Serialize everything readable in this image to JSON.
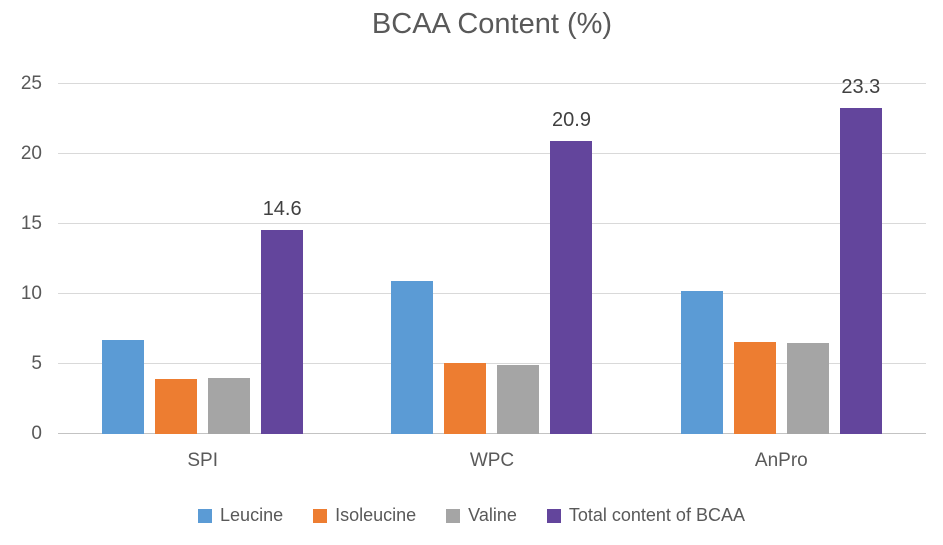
{
  "chart_data": {
    "type": "bar",
    "title": "BCAA Content (%)",
    "categories": [
      "SPI",
      "WPC",
      "AnPro"
    ],
    "series": [
      {
        "name": "Leucine",
        "color": "#5B9BD5",
        "values": [
          6.7,
          10.9,
          10.2
        ]
      },
      {
        "name": "Isoleucine",
        "color": "#ED7D31",
        "values": [
          3.9,
          5.1,
          6.6
        ]
      },
      {
        "name": "Valine",
        "color": "#A5A5A5",
        "values": [
          4.0,
          4.9,
          6.5
        ]
      },
      {
        "name": "Total content of BCAA",
        "color": "#63459C",
        "values": [
          14.6,
          20.9,
          23.3
        ],
        "data_labels": [
          "14.6",
          "20.9",
          "23.3"
        ]
      }
    ],
    "ylim": [
      0,
      25
    ],
    "yticks": [
      "0",
      "5",
      "10",
      "15",
      "20",
      "25"
    ],
    "grid": true,
    "legend_position": "bottom",
    "axis_text_color": "#595959",
    "data_label_color": "#404040",
    "gridline_color": "#D9D9D9"
  }
}
